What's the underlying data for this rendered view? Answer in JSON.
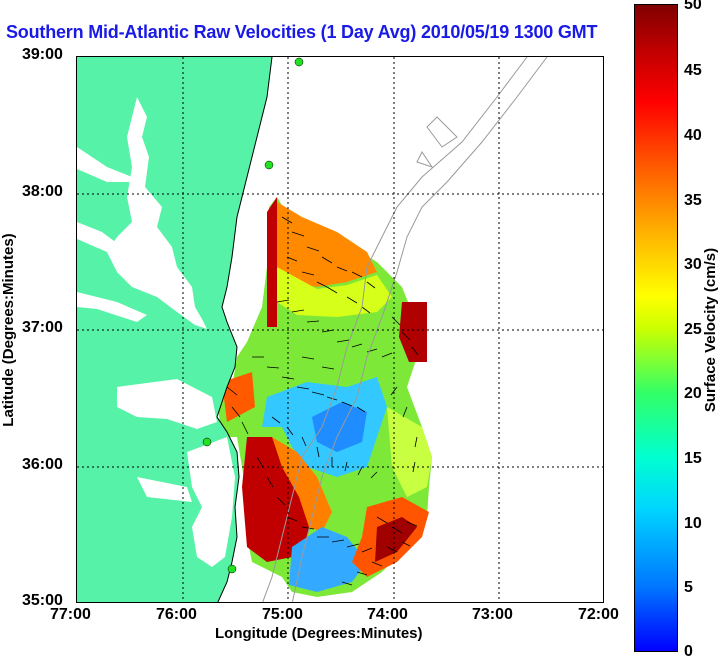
{
  "title": "Southern Mid-Atlantic Raw Velocities (1 Day Avg) 2010/05/19 1300 GMT",
  "x_axis": {
    "label": "Longitude (Degrees:Minutes)",
    "ticks": [
      "77:00",
      "76:00",
      "75:00",
      "74:00",
      "73:00",
      "72:00"
    ]
  },
  "y_axis": {
    "label": "Latitude (Degrees:Minutes)",
    "ticks": [
      "39:00",
      "38:00",
      "37:00",
      "36:00",
      "35:00"
    ]
  },
  "colorbar": {
    "label": "Surface Velocity (cm/s)",
    "ticks": [
      "0",
      "5",
      "10",
      "15",
      "20",
      "25",
      "30",
      "35",
      "40",
      "45",
      "50"
    ],
    "range": [
      0,
      50
    ]
  },
  "colors": {
    "land": "#55f2a8",
    "title": "#1a1ae6",
    "contour": "#9a9a9a"
  },
  "grid": true
}
